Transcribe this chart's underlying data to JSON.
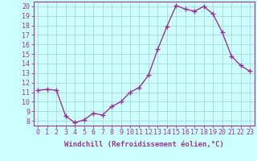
{
  "x": [
    0,
    1,
    2,
    3,
    4,
    5,
    6,
    7,
    8,
    9,
    10,
    11,
    12,
    13,
    14,
    15,
    16,
    17,
    18,
    19,
    20,
    21,
    22,
    23
  ],
  "y": [
    11.2,
    11.3,
    11.2,
    8.5,
    7.8,
    8.1,
    8.8,
    8.6,
    9.5,
    10.0,
    11.0,
    11.5,
    12.8,
    15.5,
    17.9,
    20.1,
    19.7,
    19.5,
    20.0,
    19.2,
    17.3,
    14.8,
    13.8,
    13.2
  ],
  "line_color": "#993399",
  "marker": "+",
  "marker_size": 4,
  "bg_color": "#ccffff",
  "grid_color": "#aacccc",
  "xlabel": "Windchill (Refroidissement éolien,°C)",
  "ylim_min": 7.5,
  "ylim_max": 20.5,
  "xlim_min": -0.5,
  "xlim_max": 23.5,
  "yticks": [
    8,
    9,
    10,
    11,
    12,
    13,
    14,
    15,
    16,
    17,
    18,
    19,
    20
  ],
  "xticks": [
    0,
    1,
    2,
    3,
    4,
    5,
    6,
    7,
    8,
    9,
    10,
    11,
    12,
    13,
    14,
    15,
    16,
    17,
    18,
    19,
    20,
    21,
    22,
    23
  ],
  "tick_color": "#993399",
  "label_fontsize": 6.5,
  "tick_fontsize": 6,
  "spine_color": "#993399",
  "linewidth": 1.0,
  "marker_linewidth": 1.0
}
